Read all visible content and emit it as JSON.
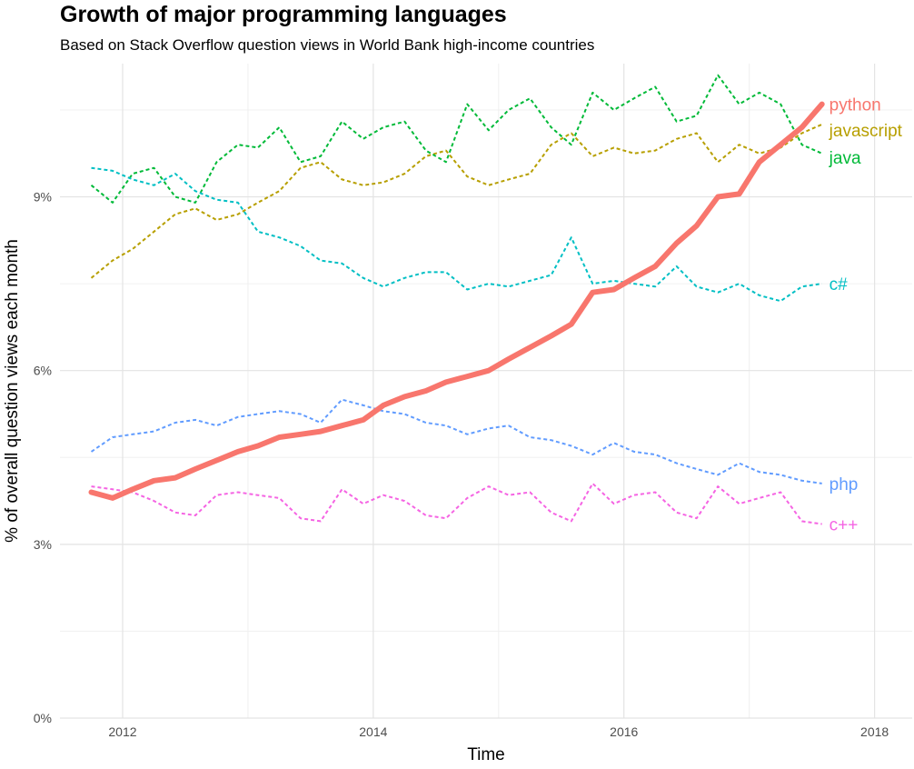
{
  "chart_data": {
    "type": "line",
    "title": "Growth of major programming languages",
    "subtitle": "Based on Stack Overflow question views in World Bank high-income countries",
    "xlabel": "Time",
    "ylabel": "% of overall question views each month",
    "xlim": [
      2011.5,
      2018.3
    ],
    "ylim": [
      0,
      11.3
    ],
    "x_ticks": [
      2012,
      2014,
      2016,
      2018
    ],
    "x_tick_labels": [
      "2012",
      "2014",
      "2016",
      "2018"
    ],
    "y_ticks": [
      0,
      3,
      6,
      9
    ],
    "y_tick_labels": [
      "0%",
      "3%",
      "6%",
      "9%"
    ],
    "legend": "direct-labels-right",
    "series": [
      {
        "name": "python",
        "label": "python",
        "color": "#F8766D",
        "dashed": false,
        "x": [
          2011.75,
          2011.92,
          2012.08,
          2012.25,
          2012.42,
          2012.58,
          2012.75,
          2012.92,
          2013.08,
          2013.25,
          2013.42,
          2013.58,
          2013.75,
          2013.92,
          2014.08,
          2014.25,
          2014.42,
          2014.58,
          2014.75,
          2014.92,
          2015.08,
          2015.25,
          2015.42,
          2015.58,
          2015.75,
          2015.92,
          2016.08,
          2016.25,
          2016.42,
          2016.58,
          2016.75,
          2016.92,
          2017.08,
          2017.25,
          2017.42,
          2017.58
        ],
        "values": [
          3.9,
          3.8,
          3.95,
          4.1,
          4.15,
          4.3,
          4.45,
          4.6,
          4.7,
          4.85,
          4.9,
          4.95,
          5.05,
          5.15,
          5.4,
          5.55,
          5.65,
          5.8,
          5.9,
          6.0,
          6.2,
          6.4,
          6.6,
          6.8,
          7.35,
          7.4,
          7.6,
          7.8,
          8.2,
          8.5,
          9.0,
          9.05,
          9.6,
          9.9,
          10.2,
          10.6
        ]
      },
      {
        "name": "javascript",
        "label": "javascript",
        "color": "#B79F00",
        "dashed": true,
        "x": [
          2011.75,
          2011.92,
          2012.08,
          2012.25,
          2012.42,
          2012.58,
          2012.75,
          2012.92,
          2013.08,
          2013.25,
          2013.42,
          2013.58,
          2013.75,
          2013.92,
          2014.08,
          2014.25,
          2014.42,
          2014.58,
          2014.75,
          2014.92,
          2015.08,
          2015.25,
          2015.42,
          2015.58,
          2015.75,
          2015.92,
          2016.08,
          2016.25,
          2016.42,
          2016.58,
          2016.75,
          2016.92,
          2017.08,
          2017.25,
          2017.42,
          2017.58
        ],
        "values": [
          7.6,
          7.9,
          8.1,
          8.4,
          8.7,
          8.8,
          8.6,
          8.7,
          8.9,
          9.1,
          9.5,
          9.6,
          9.3,
          9.2,
          9.25,
          9.4,
          9.7,
          9.8,
          9.35,
          9.2,
          9.3,
          9.4,
          9.9,
          10.1,
          9.7,
          9.85,
          9.75,
          9.8,
          10.0,
          10.1,
          9.6,
          9.9,
          9.75,
          9.85,
          10.1,
          10.25
        ]
      },
      {
        "name": "java",
        "label": "java",
        "color": "#00BA38",
        "dashed": true,
        "x": [
          2011.75,
          2011.92,
          2012.08,
          2012.25,
          2012.42,
          2012.58,
          2012.75,
          2012.92,
          2013.08,
          2013.25,
          2013.42,
          2013.58,
          2013.75,
          2013.92,
          2014.08,
          2014.25,
          2014.42,
          2014.58,
          2014.75,
          2014.92,
          2015.08,
          2015.25,
          2015.42,
          2015.58,
          2015.75,
          2015.92,
          2016.08,
          2016.25,
          2016.42,
          2016.58,
          2016.75,
          2016.92,
          2017.08,
          2017.25,
          2017.42,
          2017.58
        ],
        "values": [
          9.2,
          8.9,
          9.4,
          9.5,
          9.0,
          8.9,
          9.6,
          9.9,
          9.85,
          10.2,
          9.6,
          9.7,
          10.3,
          10.0,
          10.2,
          10.3,
          9.8,
          9.6,
          10.6,
          10.15,
          10.5,
          10.7,
          10.2,
          9.9,
          10.8,
          10.5,
          10.7,
          10.9,
          10.3,
          10.4,
          11.1,
          10.6,
          10.8,
          10.6,
          9.9,
          9.75
        ]
      },
      {
        "name": "c#",
        "label": "c#",
        "color": "#00BFC4",
        "dashed": true,
        "x": [
          2011.75,
          2011.92,
          2012.08,
          2012.25,
          2012.42,
          2012.58,
          2012.75,
          2012.92,
          2013.08,
          2013.25,
          2013.42,
          2013.58,
          2013.75,
          2013.92,
          2014.08,
          2014.25,
          2014.42,
          2014.58,
          2014.75,
          2014.92,
          2015.08,
          2015.25,
          2015.42,
          2015.58,
          2015.75,
          2015.92,
          2016.08,
          2016.25,
          2016.42,
          2016.58,
          2016.75,
          2016.92,
          2017.08,
          2017.25,
          2017.42,
          2017.58
        ],
        "values": [
          9.5,
          9.45,
          9.3,
          9.2,
          9.4,
          9.1,
          8.95,
          8.9,
          8.4,
          8.3,
          8.15,
          7.9,
          7.85,
          7.6,
          7.45,
          7.6,
          7.7,
          7.7,
          7.4,
          7.5,
          7.45,
          7.55,
          7.65,
          8.3,
          7.5,
          7.55,
          7.5,
          7.45,
          7.8,
          7.45,
          7.35,
          7.5,
          7.3,
          7.2,
          7.45,
          7.5
        ]
      },
      {
        "name": "php",
        "label": "php",
        "color": "#619CFF",
        "dashed": true,
        "x": [
          2011.75,
          2011.92,
          2012.08,
          2012.25,
          2012.42,
          2012.58,
          2012.75,
          2012.92,
          2013.08,
          2013.25,
          2013.42,
          2013.58,
          2013.75,
          2013.92,
          2014.08,
          2014.25,
          2014.42,
          2014.58,
          2014.75,
          2014.92,
          2015.08,
          2015.25,
          2015.42,
          2015.58,
          2015.75,
          2015.92,
          2016.08,
          2016.25,
          2016.42,
          2016.58,
          2016.75,
          2016.92,
          2017.08,
          2017.25,
          2017.42,
          2017.58
        ],
        "values": [
          4.6,
          4.85,
          4.9,
          4.95,
          5.1,
          5.15,
          5.05,
          5.2,
          5.25,
          5.3,
          5.25,
          5.1,
          5.5,
          5.4,
          5.3,
          5.25,
          5.1,
          5.05,
          4.9,
          5.0,
          5.05,
          4.85,
          4.8,
          4.7,
          4.55,
          4.75,
          4.6,
          4.55,
          4.4,
          4.3,
          4.2,
          4.4,
          4.25,
          4.2,
          4.1,
          4.05
        ]
      },
      {
        "name": "c++",
        "label": "c++",
        "color": "#F564E3",
        "dashed": true,
        "x": [
          2011.75,
          2011.92,
          2012.08,
          2012.25,
          2012.42,
          2012.58,
          2012.75,
          2012.92,
          2013.08,
          2013.25,
          2013.42,
          2013.58,
          2013.75,
          2013.92,
          2014.08,
          2014.25,
          2014.42,
          2014.58,
          2014.75,
          2014.92,
          2015.08,
          2015.25,
          2015.42,
          2015.58,
          2015.75,
          2015.92,
          2016.08,
          2016.25,
          2016.42,
          2016.58,
          2016.75,
          2016.92,
          2017.08,
          2017.25,
          2017.42,
          2017.58
        ],
        "values": [
          4.0,
          3.95,
          3.9,
          3.75,
          3.55,
          3.5,
          3.85,
          3.9,
          3.85,
          3.8,
          3.45,
          3.4,
          3.95,
          3.7,
          3.85,
          3.75,
          3.5,
          3.45,
          3.8,
          4.0,
          3.85,
          3.9,
          3.55,
          3.4,
          4.05,
          3.7,
          3.85,
          3.9,
          3.55,
          3.45,
          4.0,
          3.7,
          3.8,
          3.9,
          3.4,
          3.35
        ]
      }
    ]
  }
}
